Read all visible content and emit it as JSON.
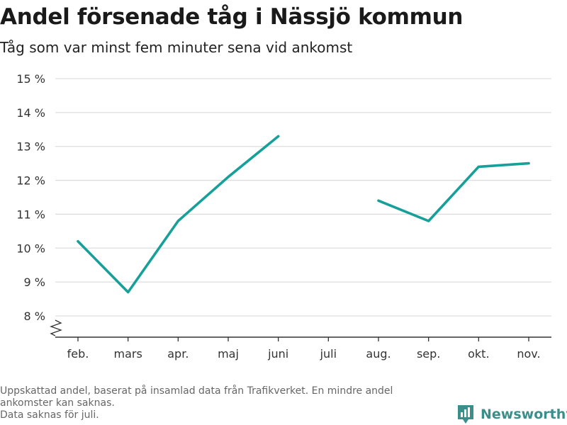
{
  "title": "Andel försenade tåg i Nässjö kommun",
  "subtitle": "Tåg som var minst fem minuter sena vid ankomst",
  "footnote": {
    "line1": "Uppskattad andel, baserat på insamlad data från Trafikverket. En mindre andel ankomster kan saknas.",
    "line2": "Data saknas för juli."
  },
  "brand": {
    "name": "Newsworthy",
    "icon": "newsworthy-logo-icon",
    "color": "#3a8f8a"
  },
  "chart_data": {
    "type": "line",
    "title": "Andel försenade tåg i Nässjö kommun",
    "subtitle": "Tåg som var minst fem minuter sena vid ankomst",
    "categories": [
      "feb.",
      "mars",
      "apr.",
      "maj",
      "juni",
      "juli",
      "aug.",
      "sep.",
      "okt.",
      "nov."
    ],
    "series": [
      {
        "values": [
          10.2,
          8.7,
          10.8,
          12.1,
          13.3,
          null,
          11.4,
          10.8,
          12.4,
          12.5
        ],
        "color": "#16a099"
      }
    ],
    "yticks": [
      8,
      9,
      10,
      11,
      12,
      13,
      14,
      15
    ],
    "ytick_labels": [
      "8 %",
      "9 %",
      "10 %",
      "11 %",
      "12 %",
      "13 %",
      "14 %",
      "15 %"
    ],
    "ylim": [
      8,
      15
    ],
    "y_axis_break": true,
    "grid": true,
    "colors": {
      "line": "#16a099",
      "grid": "#dddddd",
      "axis": "#333333"
    }
  }
}
